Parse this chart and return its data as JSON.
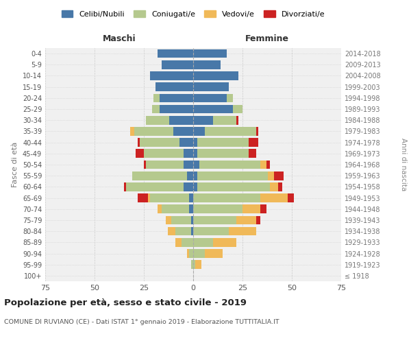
{
  "age_groups": [
    "100+",
    "95-99",
    "90-94",
    "85-89",
    "80-84",
    "75-79",
    "70-74",
    "65-69",
    "60-64",
    "55-59",
    "50-54",
    "45-49",
    "40-44",
    "35-39",
    "30-34",
    "25-29",
    "20-24",
    "15-19",
    "10-14",
    "5-9",
    "0-4"
  ],
  "birth_years": [
    "≤ 1918",
    "1919-1923",
    "1924-1928",
    "1929-1933",
    "1934-1938",
    "1939-1943",
    "1944-1948",
    "1949-1953",
    "1954-1958",
    "1959-1963",
    "1964-1968",
    "1969-1973",
    "1974-1978",
    "1979-1983",
    "1984-1988",
    "1989-1993",
    "1994-1998",
    "1999-2003",
    "2004-2008",
    "2009-2013",
    "2014-2018"
  ],
  "maschi": {
    "celibi": [
      0,
      0,
      0,
      0,
      1,
      1,
      2,
      2,
      5,
      3,
      5,
      5,
      7,
      10,
      12,
      17,
      17,
      19,
      22,
      16,
      18
    ],
    "coniugati": [
      0,
      1,
      2,
      6,
      8,
      10,
      14,
      20,
      29,
      28,
      19,
      20,
      20,
      20,
      12,
      4,
      3,
      0,
      0,
      0,
      0
    ],
    "vedovi": [
      0,
      0,
      1,
      3,
      4,
      3,
      2,
      1,
      0,
      0,
      0,
      0,
      0,
      2,
      0,
      0,
      0,
      0,
      0,
      0,
      0
    ],
    "divorziati": [
      0,
      0,
      0,
      0,
      0,
      0,
      0,
      5,
      1,
      0,
      1,
      4,
      1,
      0,
      0,
      0,
      0,
      0,
      0,
      0,
      0
    ]
  },
  "femmine": {
    "nubili": [
      0,
      0,
      0,
      0,
      0,
      0,
      0,
      0,
      2,
      2,
      3,
      2,
      2,
      6,
      10,
      20,
      17,
      18,
      23,
      14,
      17
    ],
    "coniugate": [
      0,
      1,
      6,
      10,
      18,
      22,
      25,
      34,
      37,
      36,
      31,
      26,
      26,
      26,
      12,
      5,
      3,
      0,
      0,
      0,
      0
    ],
    "vedove": [
      0,
      3,
      9,
      12,
      14,
      10,
      9,
      14,
      4,
      3,
      3,
      0,
      0,
      0,
      0,
      0,
      0,
      0,
      0,
      0,
      0
    ],
    "divorziate": [
      0,
      0,
      0,
      0,
      0,
      2,
      3,
      3,
      2,
      5,
      2,
      4,
      5,
      1,
      1,
      0,
      0,
      0,
      0,
      0,
      0
    ]
  },
  "colors": {
    "celibi": "#4878a8",
    "coniugati": "#b5c98e",
    "vedovi": "#f0b959",
    "divorziati": "#cc2222"
  },
  "title": "Popolazione per età, sesso e stato civile - 2019",
  "subtitle": "COMUNE DI RUVIANO (CE) - Dati ISTAT 1° gennaio 2019 - Elaborazione TUTTITALIA.IT",
  "xlabel_maschi": "Maschi",
  "xlabel_femmine": "Femmine",
  "ylabel": "Fasce di età",
  "ylabel_right": "Anni di nascita",
  "xlim": 75,
  "bg_color": "#f0f0f0",
  "grid_color": "#cccccc"
}
